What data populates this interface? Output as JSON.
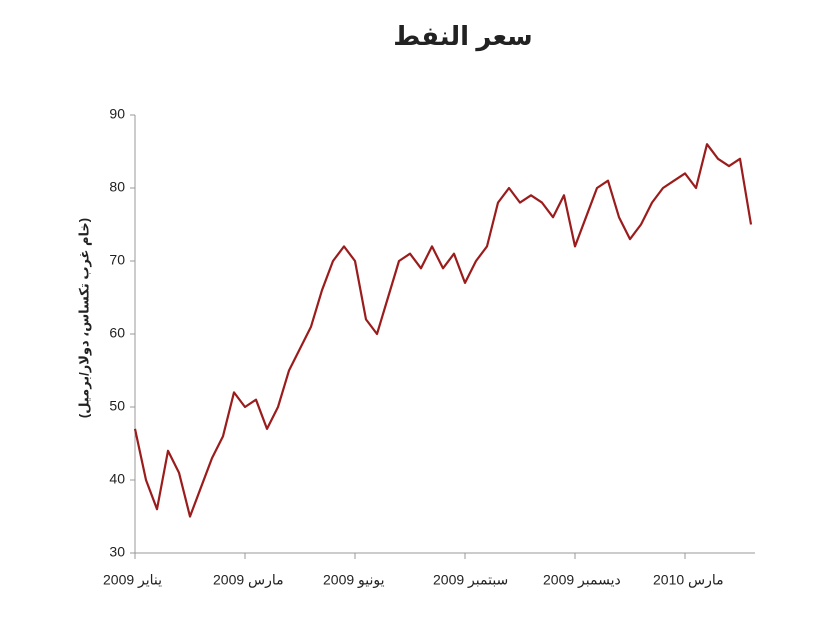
{
  "chart_data": {
    "type": "line",
    "title": "سعر النفط",
    "y_label": "(خام غرب تكساس، دولار/برميل)",
    "categories": [
      "يناير 2009",
      null,
      null,
      null,
      null,
      null,
      null,
      null,
      null,
      null,
      "مارس 2009",
      null,
      null,
      null,
      null,
      null,
      null,
      null,
      null,
      null,
      "يونيو 2009",
      null,
      null,
      null,
      null,
      null,
      null,
      null,
      null,
      null,
      "سبتمبر 2009",
      null,
      null,
      null,
      null,
      null,
      null,
      null,
      null,
      null,
      "ديسمبر 2009",
      null,
      null,
      null,
      null,
      null,
      null,
      null,
      null,
      null,
      "مارس 2010",
      null,
      null,
      null,
      null,
      null,
      null
    ],
    "series": [
      {
        "color": "#9b1c1c",
        "values": [
          47,
          40,
          36,
          44,
          41,
          35,
          39,
          43,
          46,
          52,
          50,
          51,
          47,
          50,
          55,
          58,
          61,
          66,
          70,
          72,
          70,
          62,
          60,
          65,
          70,
          71,
          69,
          72,
          69,
          71,
          67,
          70,
          72,
          78,
          80,
          78,
          79,
          78,
          76,
          79,
          72,
          76,
          80,
          81,
          76,
          73,
          75,
          78,
          80,
          81,
          82,
          80,
          86,
          84,
          83,
          84,
          75
        ]
      }
    ],
    "ylim": [
      30,
      90
    ],
    "yticks": [
      30,
      40,
      50,
      60,
      70,
      80,
      90
    ]
  }
}
